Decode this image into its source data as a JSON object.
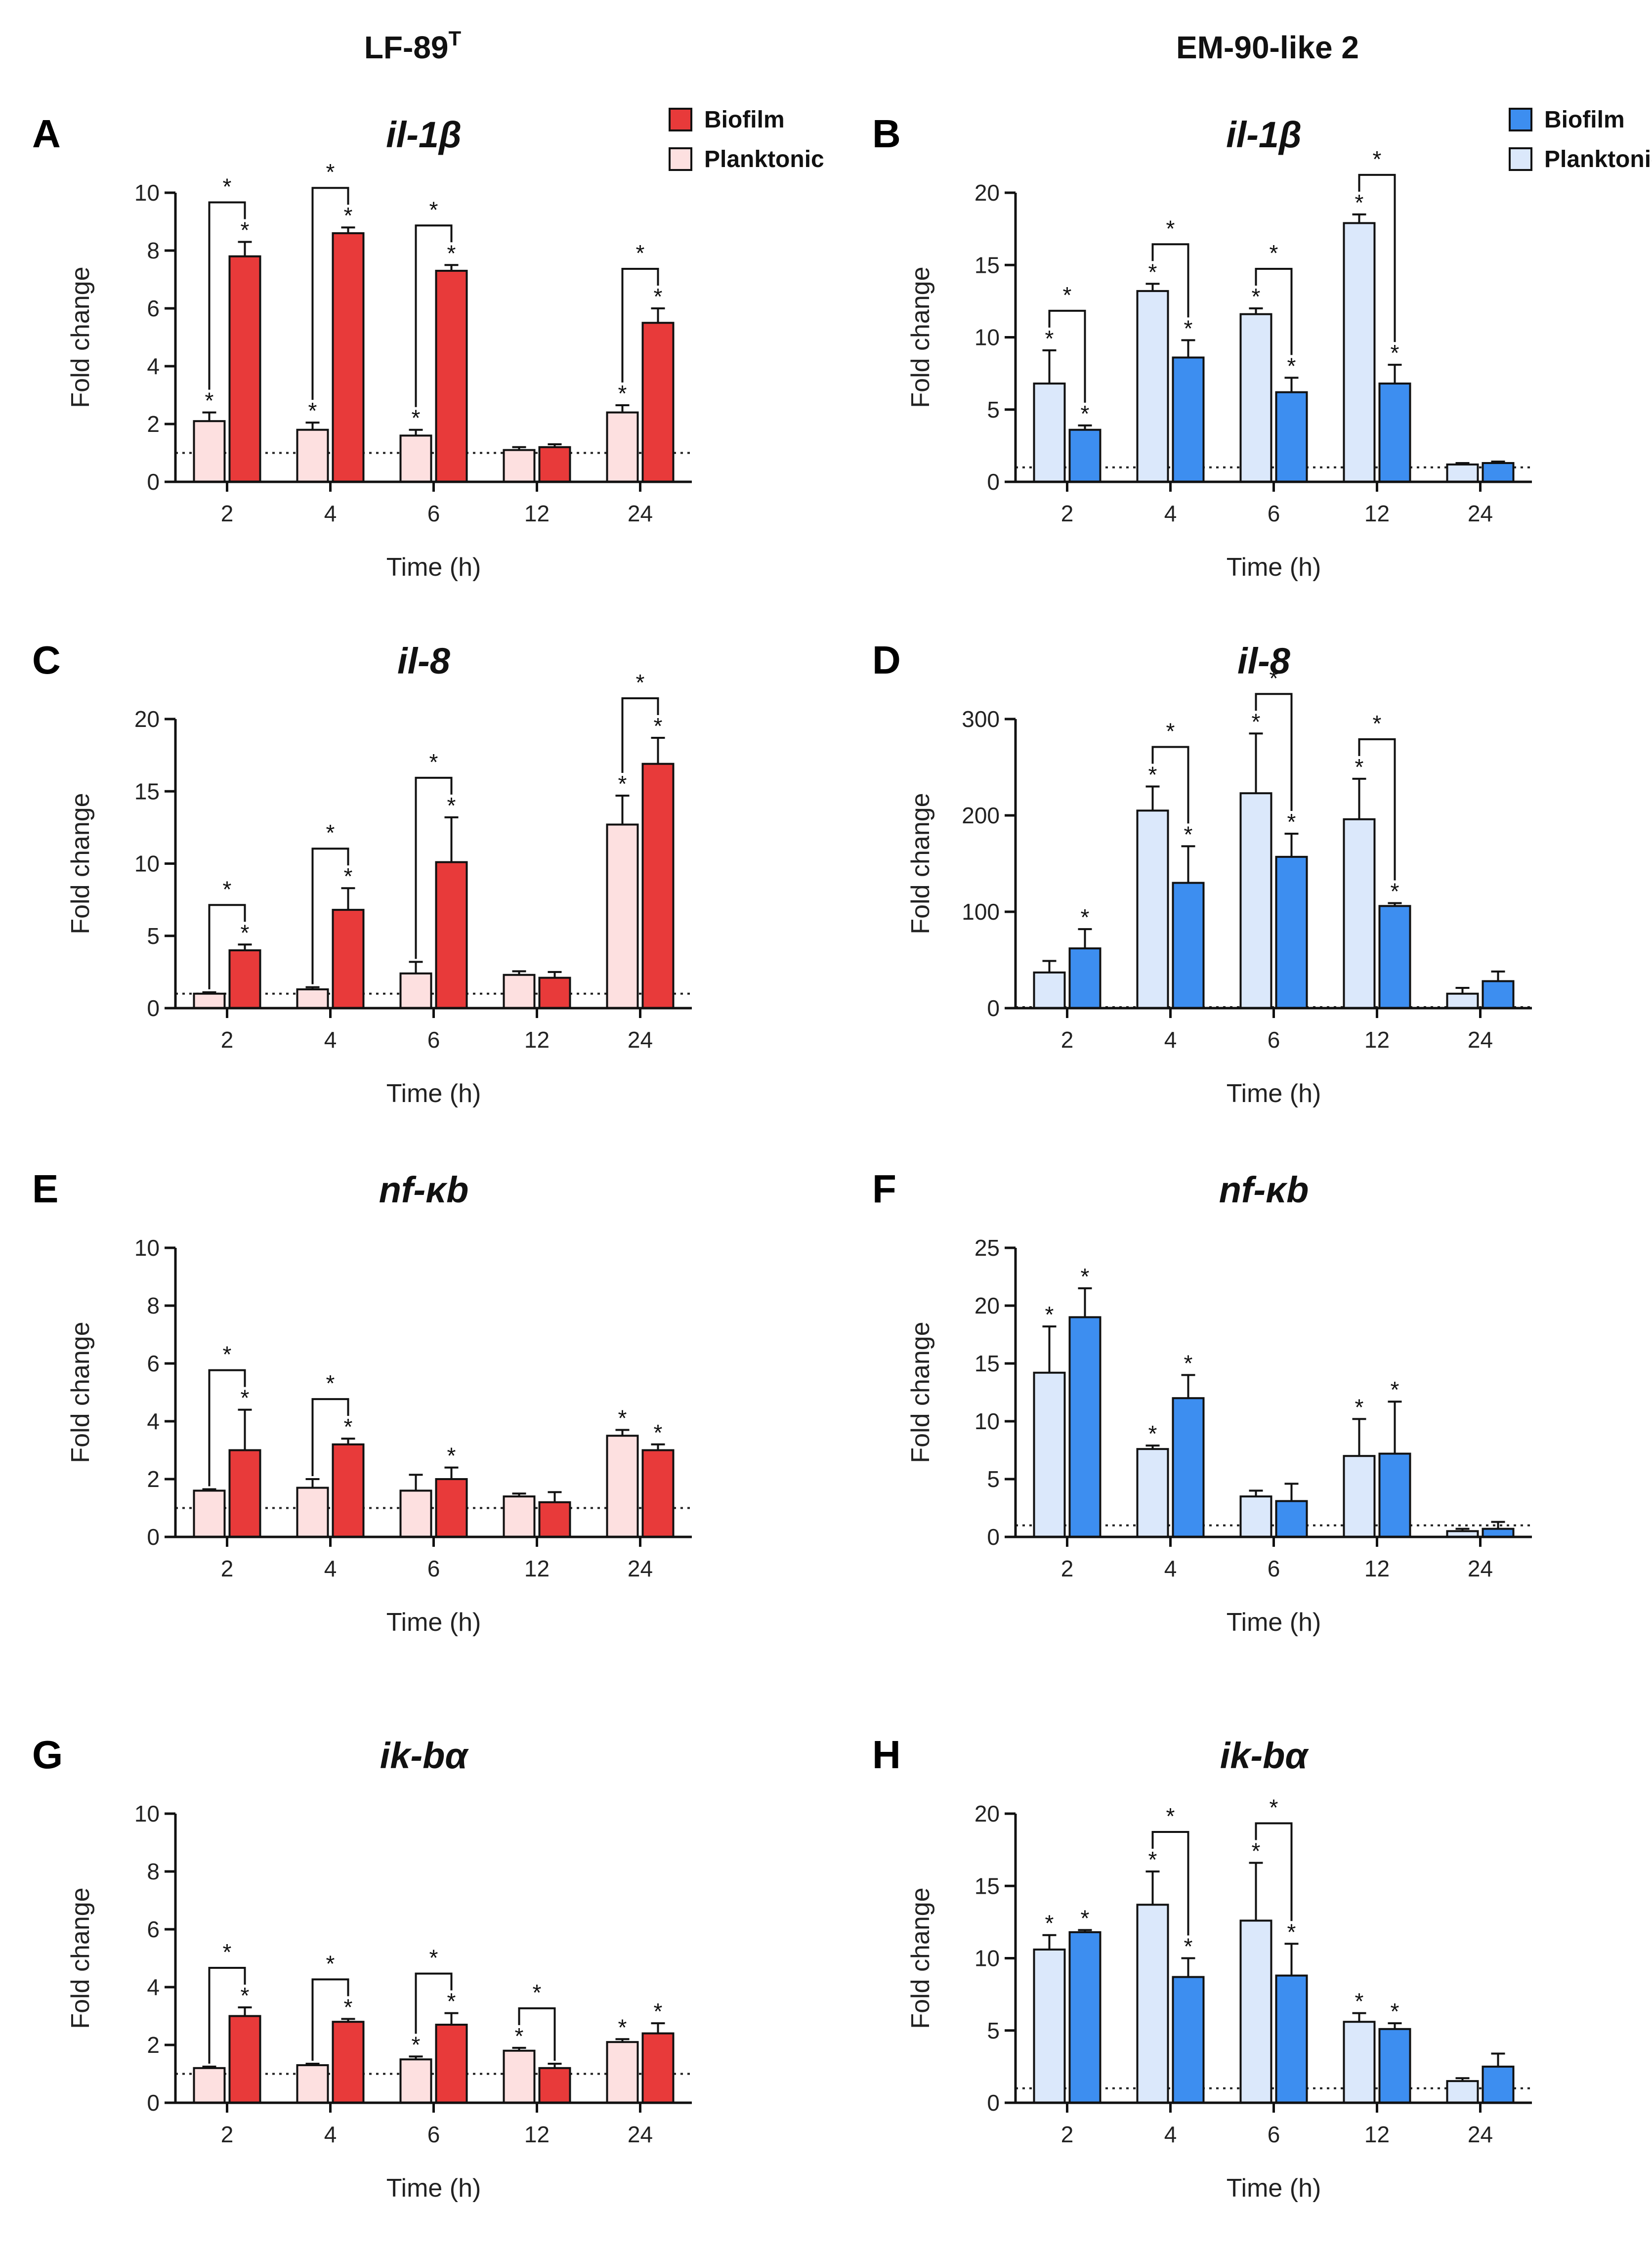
{
  "figure": {
    "column_titles": [
      {
        "text": "LF-89",
        "sup": "T"
      },
      {
        "text": "EM-90-like 2",
        "sup": ""
      }
    ]
  },
  "chart_data": [
    {
      "panel": "A",
      "title": "il-1β",
      "type": "bar",
      "categories": [
        "2",
        "4",
        "6",
        "12",
        "24"
      ],
      "xlabel": "Time  (h)",
      "ylabel": "Fold change",
      "ylim": [
        0,
        10
      ],
      "yticks": [
        0,
        2,
        4,
        6,
        8,
        10
      ],
      "baseline": 1,
      "legend_position": "top-right",
      "series": [
        {
          "name": "Planktonic",
          "color": "#fde0e0",
          "values": [
            2.1,
            1.8,
            1.6,
            1.1,
            2.4
          ],
          "errors": [
            0.3,
            0.25,
            0.2,
            0.1,
            0.25
          ],
          "stars": [
            true,
            true,
            true,
            false,
            true
          ]
        },
        {
          "name": "Biofilm",
          "color": "#e83a3a",
          "values": [
            7.8,
            8.6,
            7.3,
            1.2,
            5.5
          ],
          "errors": [
            0.5,
            0.2,
            0.2,
            0.1,
            0.5
          ],
          "stars": [
            true,
            true,
            true,
            false,
            true
          ]
        }
      ],
      "brackets": [
        0,
        1,
        2,
        4
      ]
    },
    {
      "panel": "B",
      "title": "il-1β",
      "type": "bar",
      "categories": [
        "2",
        "4",
        "6",
        "12",
        "24"
      ],
      "xlabel": "Time  (h)",
      "ylabel": "Fold change",
      "ylim": [
        0,
        20
      ],
      "yticks": [
        0,
        5,
        10,
        15,
        20
      ],
      "baseline": 1,
      "legend_position": "top-right",
      "series": [
        {
          "name": "Planktonic",
          "color": "#dbe8fb",
          "values": [
            6.8,
            13.2,
            11.6,
            17.9,
            1.2
          ],
          "errors": [
            2.3,
            0.5,
            0.4,
            0.6,
            0.1
          ],
          "stars": [
            true,
            true,
            true,
            true,
            false
          ]
        },
        {
          "name": "Biofilm",
          "color": "#3d8ef0",
          "values": [
            3.6,
            8.6,
            6.2,
            6.8,
            1.3
          ],
          "errors": [
            0.3,
            1.2,
            1.0,
            1.3,
            0.1
          ],
          "stars": [
            true,
            true,
            true,
            true,
            false
          ]
        }
      ],
      "brackets": [
        0,
        1,
        2,
        3
      ]
    },
    {
      "panel": "C",
      "title": "il-8",
      "type": "bar",
      "categories": [
        "2",
        "4",
        "6",
        "12",
        "24"
      ],
      "xlabel": "Time  (h)",
      "ylabel": "Fold change",
      "ylim": [
        0,
        20
      ],
      "yticks": [
        0,
        5,
        10,
        15,
        20
      ],
      "baseline": 1,
      "legend_position": "none",
      "series": [
        {
          "name": "Planktonic",
          "color": "#fde0e0",
          "values": [
            1.0,
            1.3,
            2.4,
            2.3,
            12.7
          ],
          "errors": [
            0.1,
            0.15,
            0.8,
            0.25,
            2.0
          ],
          "stars": [
            false,
            false,
            false,
            false,
            true
          ]
        },
        {
          "name": "Biofilm",
          "color": "#e83a3a",
          "values": [
            4.0,
            6.8,
            10.1,
            2.1,
            16.9
          ],
          "errors": [
            0.4,
            1.5,
            3.1,
            0.4,
            1.8
          ],
          "stars": [
            true,
            true,
            true,
            false,
            true
          ]
        }
      ],
      "brackets": [
        0,
        1,
        2,
        4
      ]
    },
    {
      "panel": "D",
      "title": "il-8",
      "type": "bar",
      "categories": [
        "2",
        "4",
        "6",
        "12",
        "24"
      ],
      "xlabel": "Time  (h)",
      "ylabel": "Fold change",
      "ylim": [
        0,
        300
      ],
      "yticks": [
        0,
        100,
        200,
        300
      ],
      "baseline": 1,
      "legend_position": "none",
      "series": [
        {
          "name": "Planktonic",
          "color": "#dbe8fb",
          "values": [
            37,
            205,
            223,
            196,
            15
          ],
          "errors": [
            12,
            25,
            62,
            42,
            6
          ],
          "stars": [
            false,
            true,
            true,
            true,
            false
          ]
        },
        {
          "name": "Biofilm",
          "color": "#3d8ef0",
          "values": [
            62,
            130,
            157,
            106,
            28
          ],
          "errors": [
            20,
            38,
            24,
            3,
            10
          ],
          "stars": [
            true,
            true,
            true,
            true,
            false
          ]
        }
      ],
      "brackets": [
        1,
        2,
        3
      ]
    },
    {
      "panel": "E",
      "title": "nf-κb",
      "type": "bar",
      "categories": [
        "2",
        "4",
        "6",
        "12",
        "24"
      ],
      "xlabel": "Time  (h)",
      "ylabel": "Fold change",
      "ylim": [
        0,
        10
      ],
      "yticks": [
        0,
        2,
        4,
        6,
        8,
        10
      ],
      "baseline": 1,
      "legend_position": "none",
      "series": [
        {
          "name": "Planktonic",
          "color": "#fde0e0",
          "values": [
            1.6,
            1.7,
            1.6,
            1.4,
            3.5
          ],
          "errors": [
            0.05,
            0.3,
            0.55,
            0.1,
            0.2
          ],
          "stars": [
            false,
            false,
            false,
            false,
            true
          ]
        },
        {
          "name": "Biofilm",
          "color": "#e83a3a",
          "values": [
            3.0,
            3.2,
            2.0,
            1.2,
            3.0
          ],
          "errors": [
            1.4,
            0.2,
            0.4,
            0.35,
            0.2
          ],
          "stars": [
            true,
            true,
            true,
            false,
            true
          ]
        }
      ],
      "brackets": [
        0,
        1
      ]
    },
    {
      "panel": "F",
      "title": "nf-κb",
      "type": "bar",
      "categories": [
        "2",
        "4",
        "6",
        "12",
        "24"
      ],
      "xlabel": "Time  (h)",
      "ylabel": "Fold change",
      "ylim": [
        0,
        25
      ],
      "yticks": [
        0,
        5,
        10,
        15,
        20,
        25
      ],
      "baseline": 1,
      "legend_position": "none",
      "series": [
        {
          "name": "Planktonic",
          "color": "#dbe8fb",
          "values": [
            14.2,
            7.6,
            3.5,
            7.0,
            0.5
          ],
          "errors": [
            4.0,
            0.3,
            0.5,
            3.2,
            0.2
          ],
          "stars": [
            true,
            true,
            false,
            true,
            false
          ]
        },
        {
          "name": "Biofilm",
          "color": "#3d8ef0",
          "values": [
            19.0,
            12.0,
            3.1,
            7.2,
            0.7
          ],
          "errors": [
            2.5,
            2.0,
            1.5,
            4.5,
            0.6
          ],
          "stars": [
            true,
            true,
            false,
            true,
            false
          ]
        }
      ],
      "brackets": []
    },
    {
      "panel": "G",
      "title": "ik-bα",
      "type": "bar",
      "categories": [
        "2",
        "4",
        "6",
        "12",
        "24"
      ],
      "xlabel": "Time  (h)",
      "ylabel": "Fold change",
      "ylim": [
        0,
        10
      ],
      "yticks": [
        0,
        2,
        4,
        6,
        8,
        10
      ],
      "baseline": 1,
      "legend_position": "none",
      "series": [
        {
          "name": "Planktonic",
          "color": "#fde0e0",
          "values": [
            1.2,
            1.3,
            1.5,
            1.8,
            2.1
          ],
          "errors": [
            0.05,
            0.05,
            0.1,
            0.1,
            0.1
          ],
          "stars": [
            false,
            false,
            true,
            true,
            true
          ]
        },
        {
          "name": "Biofilm",
          "color": "#e83a3a",
          "values": [
            3.0,
            2.8,
            2.7,
            1.2,
            2.4
          ],
          "errors": [
            0.3,
            0.1,
            0.4,
            0.15,
            0.35
          ],
          "stars": [
            true,
            true,
            true,
            false,
            true
          ]
        }
      ],
      "brackets": [
        0,
        1,
        2,
        3
      ]
    },
    {
      "panel": "H",
      "title": "ik-bα",
      "type": "bar",
      "categories": [
        "2",
        "4",
        "6",
        "12",
        "24"
      ],
      "xlabel": "Time  (h)",
      "ylabel": "Fold change",
      "ylim": [
        0,
        20
      ],
      "yticks": [
        0,
        5,
        10,
        15,
        20
      ],
      "baseline": 1,
      "legend_position": "none",
      "series": [
        {
          "name": "Planktonic",
          "color": "#dbe8fb",
          "values": [
            10.6,
            13.7,
            12.6,
            5.6,
            1.5
          ],
          "errors": [
            1.0,
            2.3,
            4.0,
            0.6,
            0.2
          ],
          "stars": [
            true,
            true,
            true,
            true,
            false
          ]
        },
        {
          "name": "Biofilm",
          "color": "#3d8ef0",
          "values": [
            11.8,
            8.7,
            8.8,
            5.1,
            2.5
          ],
          "errors": [
            0.15,
            1.3,
            2.2,
            0.4,
            0.9
          ],
          "stars": [
            true,
            true,
            true,
            true,
            false
          ]
        }
      ],
      "brackets": [
        1,
        2
      ]
    }
  ]
}
